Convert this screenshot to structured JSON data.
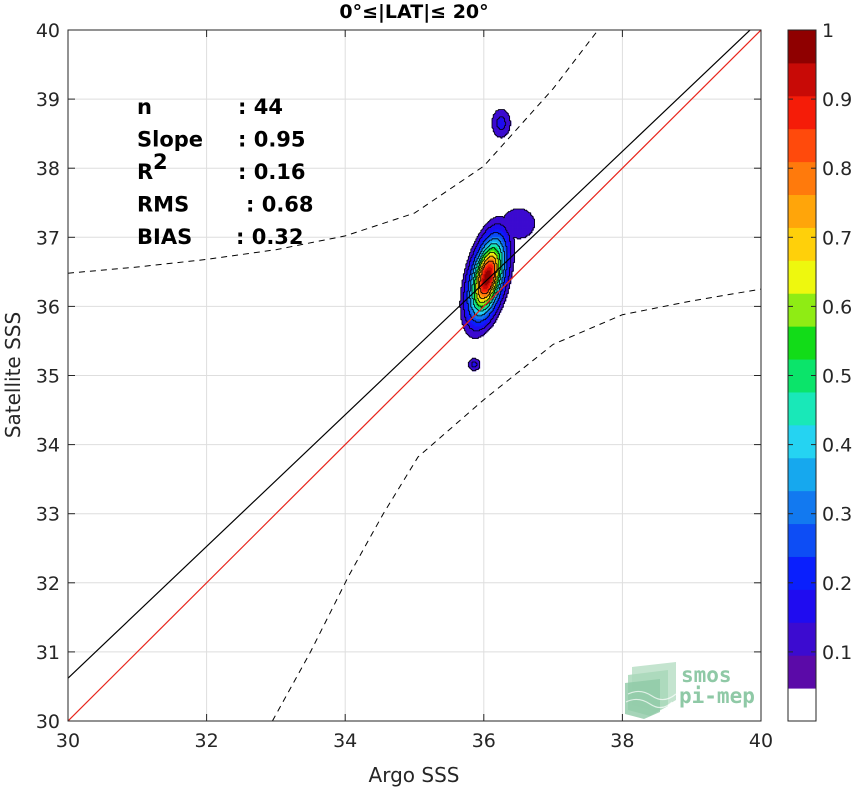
{
  "chart_data": {
    "type": "heatmap",
    "title": "0°≤|LAT|≤ 20°",
    "xlabel": "Argo SSS",
    "ylabel": "Satellite SSS",
    "xlim": [
      30,
      40
    ],
    "ylim": [
      30,
      40
    ],
    "xticks": [
      "30",
      "32",
      "34",
      "36",
      "38",
      "40"
    ],
    "yticks": [
      "30",
      "31",
      "32",
      "33",
      "34",
      "35",
      "36",
      "37",
      "38",
      "39",
      "40"
    ],
    "grid": true,
    "stats": [
      {
        "label": "n",
        "sep": ":",
        "value": "44"
      },
      {
        "label": "Slope",
        "sep": ":",
        "value": "0.95"
      },
      {
        "label": "R",
        "sup": "2",
        "sep": ":",
        "value": "0.16"
      },
      {
        "label": "RMS",
        "sep": ":",
        "value": "0.68"
      },
      {
        "label": "BIAS",
        "sep": ":",
        "value": "0.32"
      }
    ],
    "identity_line": {
      "color": "#e8251c",
      "points": [
        [
          30,
          30
        ],
        [
          40,
          40
        ]
      ]
    },
    "regression_line": {
      "color": "#000000",
      "points": [
        [
          30,
          30.62
        ],
        [
          40,
          40.15
        ]
      ]
    },
    "confidence_upper": [
      [
        30,
        36.48
      ],
      [
        31,
        36.57
      ],
      [
        32,
        36.68
      ],
      [
        33,
        36.82
      ],
      [
        34,
        37.02
      ],
      [
        35,
        37.35
      ],
      [
        36,
        38.03
      ],
      [
        37,
        39.15
      ],
      [
        37.65,
        40
      ]
    ],
    "confidence_lower": [
      [
        32.95,
        30
      ],
      [
        33.5,
        31
      ],
      [
        34.05,
        32.1
      ],
      [
        34.55,
        33
      ],
      [
        35.05,
        33.82
      ],
      [
        36,
        34.65
      ],
      [
        37,
        35.45
      ],
      [
        38,
        35.88
      ],
      [
        39,
        36.08
      ],
      [
        40,
        36.25
      ]
    ],
    "density_peak": {
      "x": 36.05,
      "y": 36.42,
      "sx": 0.16,
      "sy": 0.36,
      "rho": 0.45
    },
    "extra_blobs": [
      {
        "x": 36.25,
        "y": 38.65,
        "rx": 0.14,
        "ry": 0.22
      },
      {
        "x": 35.86,
        "y": 35.16,
        "rx": 0.09,
        "ry": 0.09
      },
      {
        "x": 36.5,
        "y": 37.2,
        "rx": 0.3,
        "ry": 0.28
      }
    ],
    "contour_levels": [
      0.05,
      0.1,
      0.15,
      0.2,
      0.25,
      0.3,
      0.35,
      0.4,
      0.45,
      0.5,
      0.55,
      0.6,
      0.65,
      0.7,
      0.75,
      0.8,
      0.85,
      0.9,
      0.95
    ],
    "colormap": [
      "#5b0aa8",
      "#3c0bd0",
      "#1f0cf0",
      "#0a1ffd",
      "#0d4df5",
      "#1279f0",
      "#16a8ee",
      "#25d3f2",
      "#19e8b8",
      "#0be46a",
      "#12dc18",
      "#8fec14",
      "#eef80e",
      "#ffd00a",
      "#ffa50a",
      "#ff7a0c",
      "#ff4a0c",
      "#f51c08",
      "#c80a06",
      "#8f0000"
    ],
    "colorbar": {
      "range": [
        0,
        1
      ],
      "ticks": [
        "0.1",
        "0.2",
        "0.3",
        "0.4",
        "0.5",
        "0.6",
        "0.7",
        "0.8",
        "0.9",
        "1"
      ]
    }
  },
  "logo": {
    "line1": "smos",
    "line2": "pi-mep",
    "color": "#8fc9a6"
  }
}
